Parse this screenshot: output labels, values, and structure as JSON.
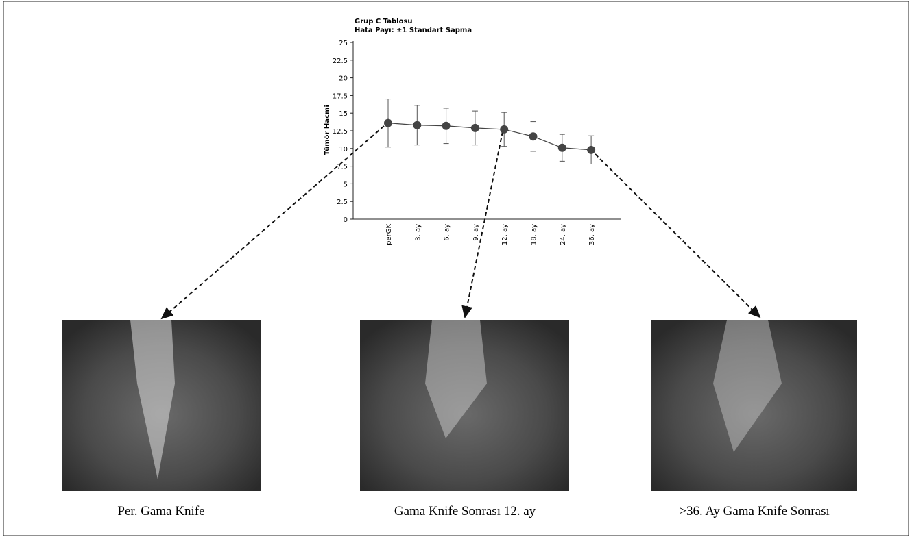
{
  "chart_data": {
    "type": "line",
    "title": "Grup C Tablosu",
    "subtitle": "Hata Payı: ±1 Standart Sapma",
    "y_label": "Tümör Hacmi",
    "categories": [
      "perGK",
      "3. ay",
      "6. ay",
      "9. ay",
      "12. ay",
      "18. ay",
      "24. ay",
      "36. ay"
    ],
    "values": [
      13.6,
      13.3,
      13.2,
      12.9,
      12.7,
      11.7,
      10.1,
      9.8
    ],
    "errors": [
      3.4,
      2.8,
      2.5,
      2.4,
      2.4,
      2.1,
      1.9,
      2.0
    ],
    "color": "#444444",
    "ylim": [
      0,
      25
    ],
    "yticks": [
      0,
      2.5,
      5,
      7.5,
      10,
      12.5,
      15,
      17.5,
      20,
      22.5,
      25
    ]
  },
  "images": [
    {
      "caption": "Per. Gama Knife"
    },
    {
      "caption": "Gama Knife Sonrası 12. ay"
    },
    {
      "caption": ">36. Ay Gama Knife Sonrası"
    }
  ]
}
